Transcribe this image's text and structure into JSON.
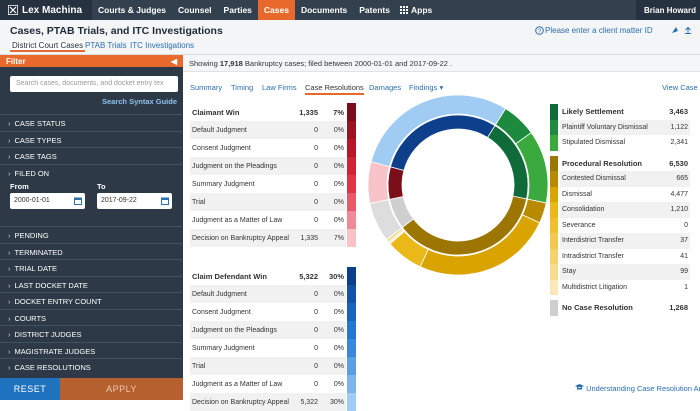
{
  "nav": {
    "logo": "Lex Machina",
    "items": [
      "Courts & Judges",
      "Counsel",
      "Parties",
      "Cases",
      "Documents",
      "Patents",
      "Apps"
    ],
    "user": "Brian Howard"
  },
  "header": {
    "title": "Cases, PTAB Trials, and ITC Investigations",
    "tabs": [
      "District Court Cases",
      "PTAB Trials",
      "ITC Investigations"
    ],
    "client_prompt": "Please enter a client matter ID"
  },
  "sidebar": {
    "filter": "Filter",
    "search_placeholder": "Search cases, documents, and docket entry tex",
    "syntax_link": "Search Syntax Guide",
    "sections_top": [
      "CASE STATUS",
      "CASE TYPES",
      "CASE TAGS",
      "FILED ON"
    ],
    "from_label": "From",
    "from": "2000-01-01",
    "to_label": "To",
    "to": "2017-09-22",
    "sections_bottom": [
      "PENDING",
      "TERMINATED",
      "TRIAL DATE",
      "LAST DOCKET DATE",
      "DOCKET ENTRY COUNT",
      "COURTS",
      "DISTRICT JUDGES",
      "MAGISTRATE JUDGES",
      "CASE RESOLUTIONS"
    ],
    "reset": "RESET",
    "apply": "APPLY"
  },
  "summary": {
    "prefix": "Showing",
    "count": "17,918",
    "rest": "Bankruptcy  cases;  filed between 2000-01-01 and 2017-09-22 ."
  },
  "tabs": [
    "Summary",
    "Timing",
    "Law Firms",
    "Case Resolutions",
    "Damages",
    "Findings"
  ],
  "view_link": "View Case L",
  "left_tables": [
    {
      "title": "Claimant Win",
      "count": 1335,
      "count_label": "1,335",
      "pct": "7%",
      "color": "#7a0f1a",
      "rows": [
        {
          "label": "Default Judgment",
          "count": 0,
          "pct": "0%",
          "color": "#9b1222"
        },
        {
          "label": "Consent Judgment",
          "count": 0,
          "pct": "0%",
          "color": "#b8172a"
        },
        {
          "label": "Judgment on the Pleadings",
          "count": 0,
          "pct": "0%",
          "color": "#cf2236"
        },
        {
          "label": "Summary Judgment",
          "count": 0,
          "pct": "0%",
          "color": "#df3447"
        },
        {
          "label": "Trial",
          "count": 0,
          "pct": "0%",
          "color": "#e85a6a"
        },
        {
          "label": "Judgment as a Matter of Law",
          "count": 0,
          "pct": "0%",
          "color": "#f08a96"
        },
        {
          "label": "Decision on Bankruptcy Appeal",
          "count": 1335,
          "count_label": "1,335",
          "pct": "7%",
          "color": "#f7c3c8"
        }
      ]
    },
    {
      "title": "Claim Defendant Win",
      "count": 5322,
      "count_label": "5,322",
      "pct": "30%",
      "color": "#0d3f8a",
      "rows": [
        {
          "label": "Default Judgment",
          "count": 0,
          "pct": "0%",
          "color": "#1352a6"
        },
        {
          "label": "Consent Judgment",
          "count": 0,
          "pct": "0%",
          "color": "#1a64bf"
        },
        {
          "label": "Judgment on the Pleadings",
          "count": 0,
          "pct": "0%",
          "color": "#2476d2"
        },
        {
          "label": "Summary Judgment",
          "count": 0,
          "pct": "0%",
          "color": "#3a88dc"
        },
        {
          "label": "Trial",
          "count": 0,
          "pct": "0%",
          "color": "#5a9ee4"
        },
        {
          "label": "Judgment as a Matter of Law",
          "count": 0,
          "pct": "0%",
          "color": "#7db5eb"
        },
        {
          "label": "Decision on Bankruptcy Appeal",
          "count": 5322,
          "count_label": "5,322",
          "pct": "30%",
          "color": "#a0ccf3"
        }
      ]
    }
  ],
  "right_groups": [
    {
      "title": "Likely Settlement",
      "count": 3463,
      "count_label": "3,463",
      "color": "#0f6b3a",
      "rows": [
        {
          "label": "Plaintiff Voluntary Dismissal",
          "count": 1122,
          "count_label": "1,122",
          "color": "#1e8a3d"
        },
        {
          "label": "Stipulated Dismissal",
          "count": 2341,
          "count_label": "2,341",
          "color": "#3aaa3e"
        }
      ]
    },
    {
      "title": "Procedural Resolution",
      "count": 6530,
      "count_label": "6,530",
      "color": "#9c7600",
      "rows": [
        {
          "label": "Contested Dismissal",
          "count": 665,
          "color": "#b88a00"
        },
        {
          "label": "Dismissal",
          "count": 4477,
          "count_label": "4,477",
          "color": "#d9a300"
        },
        {
          "label": "Consolidation",
          "count": 1210,
          "count_label": "1,210",
          "color": "#ebb81a"
        },
        {
          "label": "Severance",
          "count": 0,
          "color": "#efc030"
        },
        {
          "label": "Interdistrict Transfer",
          "count": 37,
          "color": "#f2c850"
        },
        {
          "label": "Intradistrict Transfer",
          "count": 41,
          "color": "#f5d270"
        },
        {
          "label": "Stay",
          "count": 99,
          "color": "#f7dc90"
        },
        {
          "label": "Multidistrict Litigation",
          "count": 1,
          "color": "#fae8b8"
        }
      ]
    },
    {
      "title": "No Case Resolution",
      "count": 1268,
      "count_label": "1,268",
      "color": "#cfcfcf"
    }
  ],
  "footer_link": "Understanding Case Resolution Ana"
}
